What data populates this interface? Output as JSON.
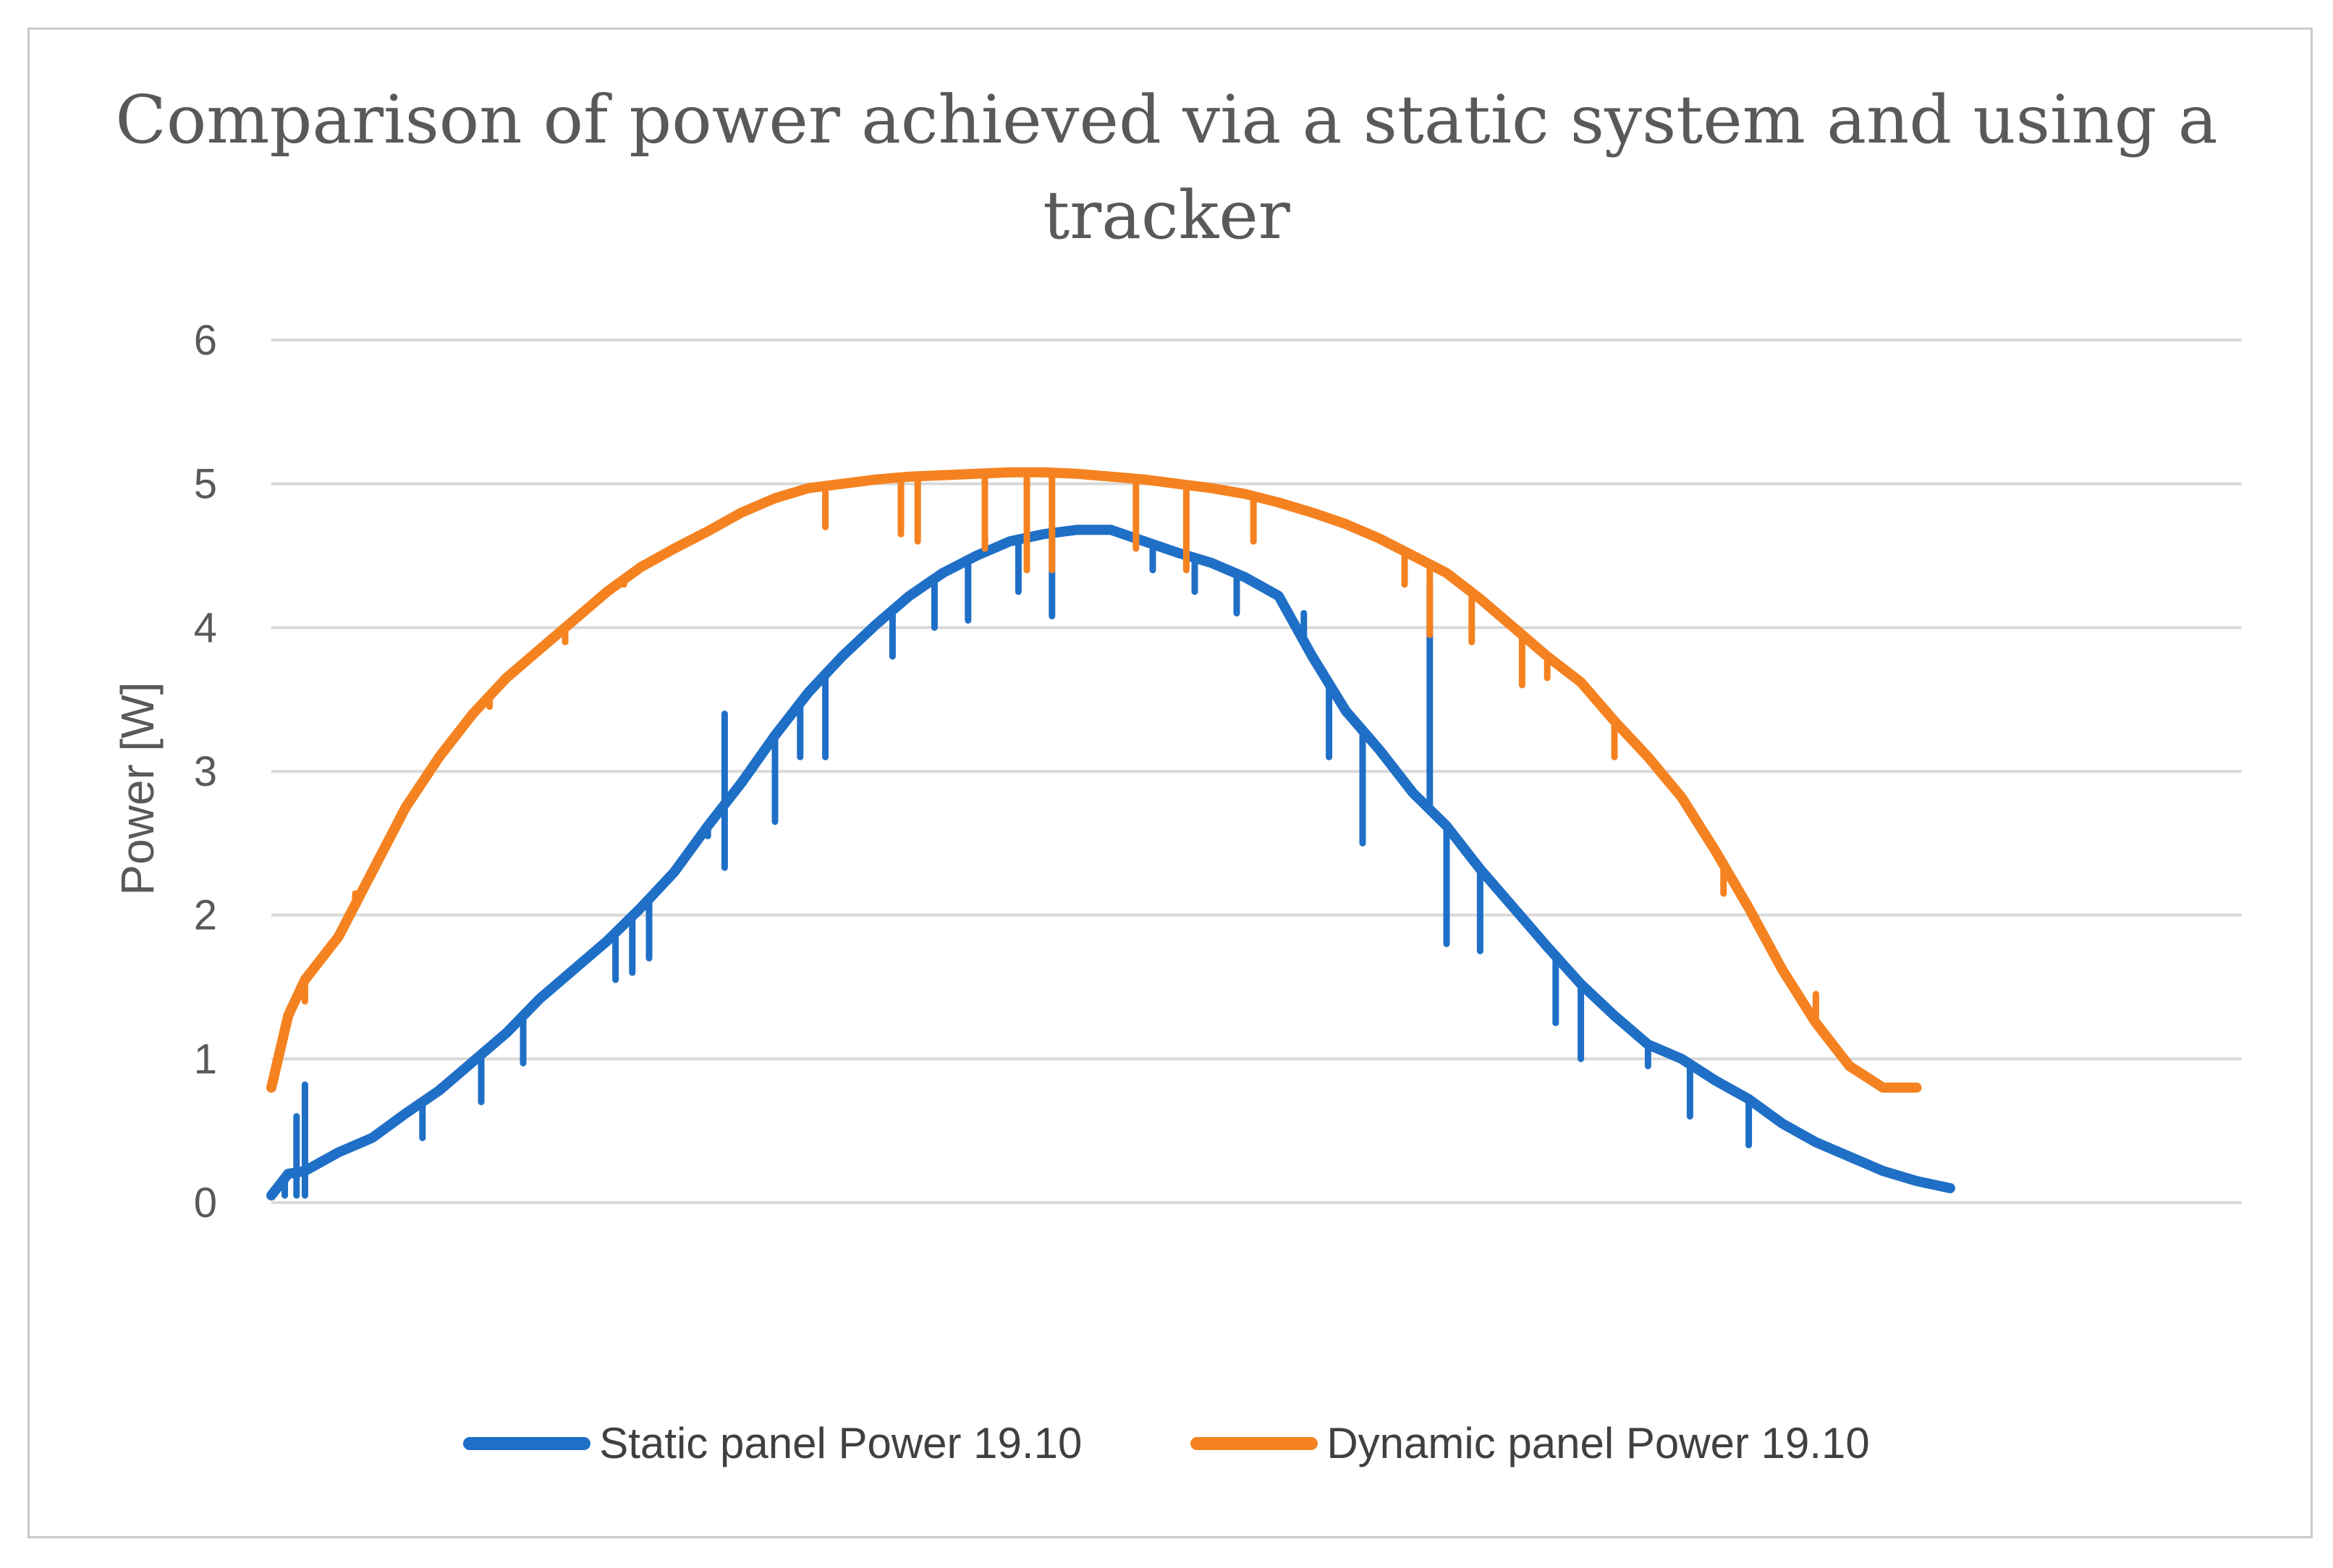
{
  "chart_data": {
    "type": "line",
    "title": "Comparison of power achieved via a static system and using a tracker",
    "xlabel": "",
    "ylabel": "Power [W]",
    "ylim": [
      0,
      6
    ],
    "yticks": [
      "0",
      "1",
      "2",
      "3",
      "4",
      "5",
      "6"
    ],
    "grid": true,
    "legend_position": "bottom",
    "x_range": [
      0,
      100
    ],
    "series": [
      {
        "name": "Static panel Power 19.10",
        "color": "#1f6fc6",
        "x": [
          0,
          1,
          2,
          4,
          6,
          8,
          10,
          12,
          14,
          16,
          18,
          20,
          22,
          24,
          26,
          28,
          30,
          32,
          34,
          36,
          38,
          40,
          42,
          44,
          46,
          48,
          50,
          52,
          54,
          56,
          58,
          60,
          62,
          64,
          66,
          68,
          70,
          72,
          74,
          76,
          78,
          80,
          82,
          84,
          86,
          88,
          90,
          92,
          94,
          96,
          98,
          100
        ],
        "values": [
          0.05,
          0.2,
          0.22,
          0.35,
          0.45,
          0.62,
          0.78,
          0.98,
          1.18,
          1.42,
          1.62,
          1.82,
          2.05,
          2.3,
          2.62,
          2.92,
          3.25,
          3.55,
          3.8,
          4.02,
          4.22,
          4.38,
          4.5,
          4.6,
          4.65,
          4.68,
          4.68,
          4.6,
          4.52,
          4.45,
          4.35,
          4.22,
          3.8,
          3.42,
          3.15,
          2.85,
          2.62,
          2.32,
          2.05,
          1.78,
          1.52,
          1.3,
          1.1,
          1.0,
          0.85,
          0.72,
          0.55,
          0.42,
          0.32,
          0.22,
          0.15,
          0.1
        ],
        "dips": [
          {
            "x": 0.8,
            "to": 0.05
          },
          {
            "x": 1.5,
            "to": 0.05
          },
          {
            "x": 2.0,
            "to": 0.05
          },
          {
            "x": 9.0,
            "to": 0.45
          },
          {
            "x": 12.5,
            "to": 0.7
          },
          {
            "x": 15.0,
            "to": 0.97
          },
          {
            "x": 20.5,
            "to": 1.55
          },
          {
            "x": 21.5,
            "to": 1.6
          },
          {
            "x": 22.5,
            "to": 1.7
          },
          {
            "x": 26.0,
            "to": 2.55
          },
          {
            "x": 27.0,
            "to": 2.33
          },
          {
            "x": 30.0,
            "to": 2.65
          },
          {
            "x": 31.5,
            "to": 3.1
          },
          {
            "x": 33.0,
            "to": 3.1
          },
          {
            "x": 37.0,
            "to": 3.8
          },
          {
            "x": 39.5,
            "to": 4.0
          },
          {
            "x": 41.5,
            "to": 4.05
          },
          {
            "x": 44.5,
            "to": 4.25
          },
          {
            "x": 46.5,
            "to": 4.08
          },
          {
            "x": 52.5,
            "to": 4.4
          },
          {
            "x": 55.0,
            "to": 4.25
          },
          {
            "x": 57.5,
            "to": 4.1
          },
          {
            "x": 61.5,
            "to": 4.1
          },
          {
            "x": 63.0,
            "to": 3.1
          },
          {
            "x": 65.0,
            "to": 2.5
          },
          {
            "x": 70.0,
            "to": 1.8
          },
          {
            "x": 72.0,
            "to": 1.75
          },
          {
            "x": 76.5,
            "to": 1.25
          },
          {
            "x": 78.0,
            "to": 1.0
          },
          {
            "x": 82.0,
            "to": 0.95
          },
          {
            "x": 84.5,
            "to": 0.6
          },
          {
            "x": 88.0,
            "to": 0.4
          }
        ],
        "spikes": [
          {
            "x": 1.5,
            "to": 0.6
          },
          {
            "x": 2.0,
            "to": 0.82
          },
          {
            "x": 27.0,
            "to": 3.4
          },
          {
            "x": 69.0,
            "to": 4.3
          }
        ]
      },
      {
        "name": "Dynamic panel Power 19.10",
        "color": "#f58220",
        "x": [
          0,
          1,
          2,
          4,
          6,
          8,
          10,
          12,
          14,
          16,
          18,
          20,
          22,
          24,
          26,
          28,
          30,
          32,
          34,
          36,
          38,
          40,
          42,
          44,
          46,
          48,
          50,
          52,
          54,
          56,
          58,
          60,
          62,
          64,
          66,
          68,
          70,
          72,
          74,
          76,
          78,
          80,
          82,
          84,
          86,
          88,
          90,
          92,
          94,
          96,
          98
        ],
        "values": [
          0.8,
          1.3,
          1.55,
          1.85,
          2.3,
          2.75,
          3.1,
          3.4,
          3.65,
          3.85,
          4.05,
          4.25,
          4.42,
          4.55,
          4.67,
          4.8,
          4.9,
          4.97,
          5.0,
          5.03,
          5.05,
          5.06,
          5.07,
          5.08,
          5.08,
          5.07,
          5.05,
          5.03,
          5.0,
          4.97,
          4.93,
          4.87,
          4.8,
          4.72,
          4.62,
          4.5,
          4.38,
          4.2,
          4.0,
          3.8,
          3.62,
          3.35,
          3.1,
          2.82,
          2.45,
          2.05,
          1.62,
          1.25,
          0.95,
          0.8,
          0.8
        ],
        "dips": [
          {
            "x": 2.0,
            "to": 1.4
          },
          {
            "x": 5.0,
            "to": 2.15
          },
          {
            "x": 10.0,
            "to": 3.1
          },
          {
            "x": 13.0,
            "to": 3.45
          },
          {
            "x": 16.0,
            "to": 3.85
          },
          {
            "x": 17.5,
            "to": 3.9
          },
          {
            "x": 21.0,
            "to": 4.3
          },
          {
            "x": 28.0,
            "to": 4.8
          },
          {
            "x": 33.0,
            "to": 4.7
          },
          {
            "x": 37.5,
            "to": 4.65
          },
          {
            "x": 38.5,
            "to": 4.6
          },
          {
            "x": 42.5,
            "to": 4.55
          },
          {
            "x": 45.0,
            "to": 4.4
          },
          {
            "x": 46.5,
            "to": 4.4
          },
          {
            "x": 51.5,
            "to": 4.55
          },
          {
            "x": 54.5,
            "to": 4.4
          },
          {
            "x": 58.5,
            "to": 4.6
          },
          {
            "x": 67.5,
            "to": 4.3
          },
          {
            "x": 69.0,
            "to": 3.95
          },
          {
            "x": 71.5,
            "to": 3.9
          },
          {
            "x": 74.5,
            "to": 3.6
          },
          {
            "x": 76.0,
            "to": 3.65
          },
          {
            "x": 80.0,
            "to": 3.1
          },
          {
            "x": 86.5,
            "to": 2.15
          },
          {
            "x": 92.0,
            "to": 1.45
          }
        ],
        "spikes": []
      }
    ]
  },
  "legend": {
    "items": [
      {
        "label": "Static panel Power 19.10",
        "color": "#1f6fc6"
      },
      {
        "label": "Dynamic panel Power 19.10",
        "color": "#f58220"
      }
    ]
  }
}
